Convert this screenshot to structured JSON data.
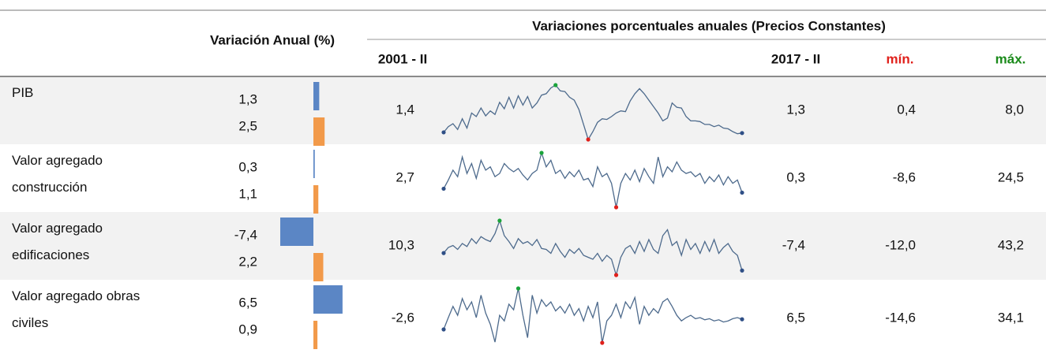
{
  "header": {
    "annual_title": "Variación Anual (%)",
    "trend_title": "Variaciones porcentuales anuales (Precios Constantes)",
    "start_label": "2001 - II",
    "end_label": "2017 - II",
    "min_label": "mín.",
    "max_label": "máx."
  },
  "rows": [
    {
      "label": "PIB",
      "values": [
        1.3,
        2.5
      ],
      "value_labels": [
        "1,3",
        "2,5"
      ],
      "start": "1,4",
      "end": "1,3",
      "min": "0,4",
      "max": "8,0",
      "trend": [
        1.4,
        2.2,
        2.6,
        1.8,
        3.3,
        2.0,
        4.1,
        3.6,
        4.8,
        3.7,
        4.4,
        3.9,
        5.6,
        4.7,
        6.3,
        4.8,
        6.5,
        5.2,
        6.4,
        4.8,
        5.5,
        6.6,
        6.8,
        7.6,
        8.0,
        7.2,
        7.1,
        6.3,
        5.9,
        4.6,
        2.5,
        0.4,
        1.5,
        2.8,
        3.3,
        3.2,
        3.6,
        4.1,
        4.4,
        4.3,
        5.8,
        6.8,
        7.5,
        6.8,
        5.9,
        5.0,
        4.1,
        3.0,
        3.4,
        5.5,
        4.9,
        4.8,
        3.6,
        3.0,
        3.0,
        2.9,
        2.5,
        2.5,
        2.2,
        2.4,
        2.0,
        1.9,
        1.5,
        1.2,
        1.3
      ]
    },
    {
      "label": "Valor agregado construcción",
      "values": [
        0.3,
        1.1
      ],
      "value_labels": [
        "0,3",
        "1,1"
      ],
      "start": "2,7",
      "end": "0,3",
      "min": "-8,6",
      "max": "24,5",
      "trend": [
        2.7,
        8,
        14,
        10,
        22,
        12,
        18,
        9,
        20,
        14,
        16,
        10,
        12,
        18,
        15,
        13,
        15,
        11,
        8,
        12,
        14,
        24.5,
        16,
        20,
        12,
        14,
        9,
        13,
        10,
        14,
        8,
        9,
        4,
        16,
        10,
        12,
        6,
        -8.6,
        6,
        12,
        8,
        14,
        7,
        15,
        10,
        6,
        22,
        10,
        16,
        13,
        19,
        14,
        12,
        13,
        10,
        12,
        6,
        10,
        7,
        11,
        5,
        10,
        6,
        8,
        0.3
      ]
    },
    {
      "label": "Valor agregado edificaciones",
      "values": [
        -7.4,
        2.2
      ],
      "value_labels": [
        "-7,4",
        "2,2"
      ],
      "start": "10,3",
      "end": "-7,4",
      "min": "-12,0",
      "max": "43,2",
      "trend": [
        10.3,
        16,
        18,
        14,
        20,
        17,
        25,
        20,
        27,
        24,
        22,
        30,
        43.2,
        28,
        22,
        15,
        25,
        20,
        22,
        18,
        24,
        15,
        14,
        10,
        20,
        12,
        6,
        14,
        10,
        15,
        8,
        6,
        4,
        10,
        2,
        8,
        4,
        -12,
        6,
        15,
        18,
        10,
        22,
        12,
        24,
        14,
        10,
        28,
        34,
        18,
        22,
        8,
        24,
        14,
        20,
        10,
        22,
        12,
        24,
        10,
        16,
        20,
        12,
        8,
        -7.4
      ]
    },
    {
      "label": "Valor agregado obras civiles",
      "values": [
        6.5,
        0.9
      ],
      "value_labels": [
        "6,5",
        "0,9"
      ],
      "start": "-2,6",
      "end": "6,5",
      "min": "-14,6",
      "max": "34,1",
      "trend": [
        -2.6,
        8,
        18,
        10,
        25,
        15,
        22,
        8,
        28,
        12,
        2,
        -14,
        10,
        5,
        20,
        15,
        34.1,
        10,
        -10,
        28,
        12,
        24,
        18,
        22,
        14,
        18,
        12,
        20,
        10,
        16,
        5,
        18,
        8,
        22,
        -14.6,
        5,
        10,
        20,
        8,
        22,
        16,
        26,
        2,
        18,
        10,
        16,
        12,
        22,
        25,
        18,
        10,
        5,
        8,
        10,
        7,
        8,
        6,
        7,
        5,
        6,
        4,
        5,
        7,
        8,
        6.5
      ]
    }
  ]
}
